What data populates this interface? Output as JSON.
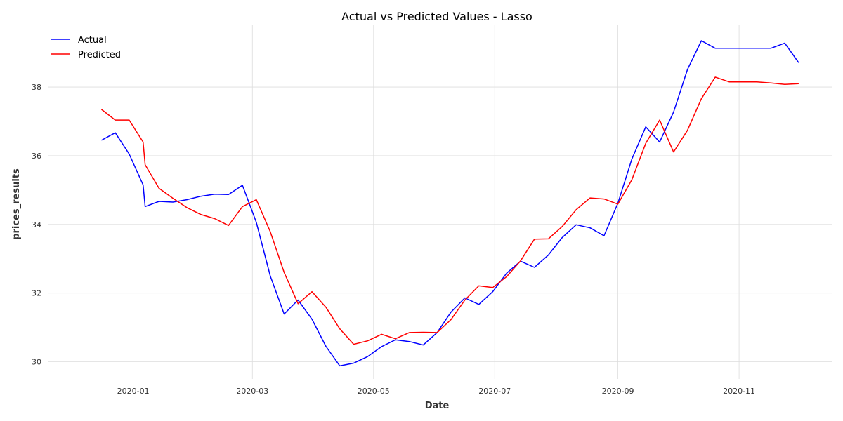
{
  "chart_data": {
    "type": "line",
    "title": "Actual vs Predicted Values - Lasso",
    "xlabel": "Date",
    "ylabel": "prices_results",
    "x_ticks": [
      "2020-01",
      "2020-03",
      "2020-05",
      "2020-07",
      "2020-09",
      "2020-11"
    ],
    "y_ticks": [
      30,
      32,
      34,
      36,
      38
    ],
    "xlim": [
      "2019-11-19",
      "2020-12-18"
    ],
    "ylim": [
      29.5,
      39.8
    ],
    "grid": true,
    "legend_position": "top-left",
    "x": [
      "2019-12-16",
      "2019-12-23",
      "2019-12-30",
      "2020-01-06",
      "2020-01-07",
      "2020-01-14",
      "2020-01-21",
      "2020-01-28",
      "2020-02-04",
      "2020-02-11",
      "2020-02-18",
      "2020-02-25",
      "2020-03-03",
      "2020-03-10",
      "2020-03-17",
      "2020-03-24",
      "2020-03-31",
      "2020-04-07",
      "2020-04-14",
      "2020-04-21",
      "2020-04-28",
      "2020-05-05",
      "2020-05-12",
      "2020-05-19",
      "2020-05-26",
      "2020-06-02",
      "2020-06-09",
      "2020-06-16",
      "2020-06-23",
      "2020-06-30",
      "2020-07-07",
      "2020-07-14",
      "2020-07-21",
      "2020-07-28",
      "2020-08-04",
      "2020-08-11",
      "2020-08-18",
      "2020-08-25",
      "2020-09-01",
      "2020-09-08",
      "2020-09-15",
      "2020-09-22",
      "2020-09-29",
      "2020-10-06",
      "2020-10-13",
      "2020-10-20",
      "2020-10-27",
      "2020-11-03",
      "2020-11-10",
      "2020-11-17",
      "2020-11-24",
      "2020-12-01"
    ],
    "series": [
      {
        "name": "Actual",
        "color": "#0000ff",
        "values": [
          36.45,
          36.67,
          36.05,
          35.15,
          34.52,
          34.67,
          34.65,
          34.72,
          34.82,
          34.88,
          34.87,
          35.14,
          34.06,
          32.5,
          31.39,
          31.8,
          31.24,
          30.45,
          29.88,
          29.96,
          30.15,
          30.44,
          30.64,
          30.59,
          30.49,
          30.85,
          31.45,
          31.86,
          31.67,
          32.04,
          32.58,
          32.93,
          32.75,
          33.11,
          33.62,
          33.99,
          33.9,
          33.67,
          34.62,
          35.9,
          36.84,
          36.4,
          37.27,
          38.51,
          39.35,
          39.13,
          39.13,
          39.13,
          39.13,
          39.13,
          39.28,
          38.71
        ]
      },
      {
        "name": "Predicted",
        "color": "#ff0000",
        "values": [
          37.35,
          37.04,
          37.04,
          36.4,
          35.74,
          35.05,
          34.76,
          34.49,
          34.29,
          34.17,
          33.97,
          34.52,
          34.72,
          33.79,
          32.6,
          31.69,
          32.04,
          31.59,
          30.96,
          30.51,
          30.61,
          30.8,
          30.67,
          30.85,
          30.86,
          30.85,
          31.23,
          31.8,
          32.21,
          32.16,
          32.48,
          32.94,
          33.57,
          33.58,
          33.94,
          34.43,
          34.77,
          34.74,
          34.59,
          35.3,
          36.36,
          37.04,
          36.11,
          36.74,
          37.66,
          38.29,
          38.15,
          38.15,
          38.15,
          38.12,
          38.08,
          38.1
        ]
      }
    ]
  }
}
